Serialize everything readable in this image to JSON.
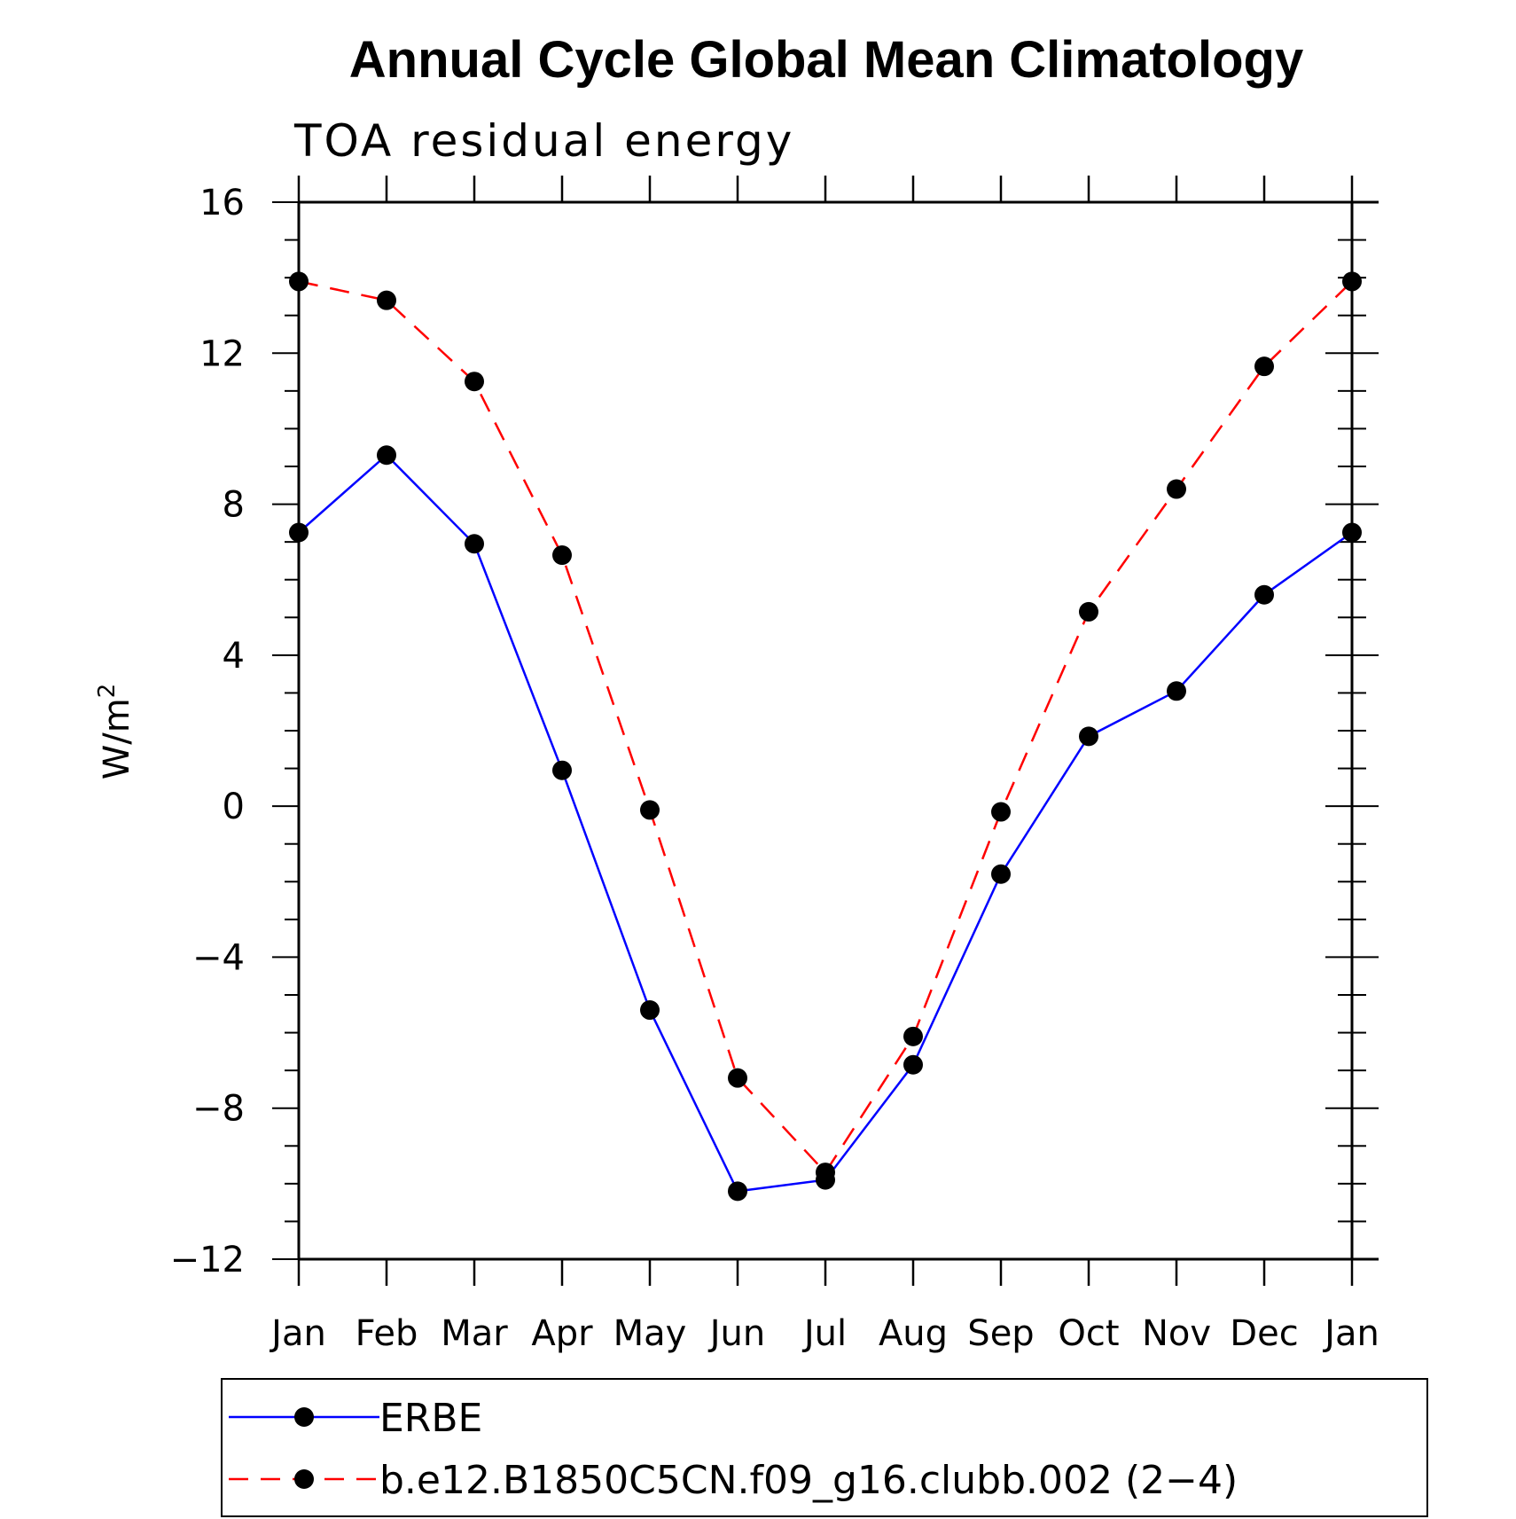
{
  "chart_data": {
    "type": "line",
    "title": "Annual Cycle Global Mean Climatology",
    "subtitle": "TOA residual energy",
    "ylabel": "W/m",
    "ylabel_superscript": "2",
    "xlabel": "",
    "categories": [
      "Jan",
      "Feb",
      "Mar",
      "Apr",
      "May",
      "Jun",
      "Jul",
      "Aug",
      "Sep",
      "Oct",
      "Nov",
      "Dec",
      "Jan"
    ],
    "ylim": [
      -12,
      16
    ],
    "yticks": [
      16,
      12,
      8,
      4,
      0,
      -4,
      -8,
      -12
    ],
    "ytick_labels": [
      "16",
      "12",
      "8",
      "4",
      "0",
      "−4",
      "−8",
      "−12"
    ],
    "series": [
      {
        "name": "ERBE",
        "color": "#0000ff",
        "dash": "solid",
        "values": [
          7.25,
          9.3,
          6.95,
          0.95,
          -5.4,
          -10.2,
          -9.9,
          -6.85,
          -1.8,
          1.85,
          3.05,
          5.6,
          7.25
        ]
      },
      {
        "name": "b.e12.B1850C5CN.f09_g16.clubb.002 (2−4)",
        "color": "#ff0000",
        "dash": "dashed",
        "values": [
          13.9,
          13.4,
          11.25,
          6.65,
          -0.1,
          -7.2,
          -9.7,
          -6.1,
          -0.15,
          5.15,
          8.4,
          11.65,
          13.9
        ]
      }
    ],
    "legend_position": "bottom"
  }
}
